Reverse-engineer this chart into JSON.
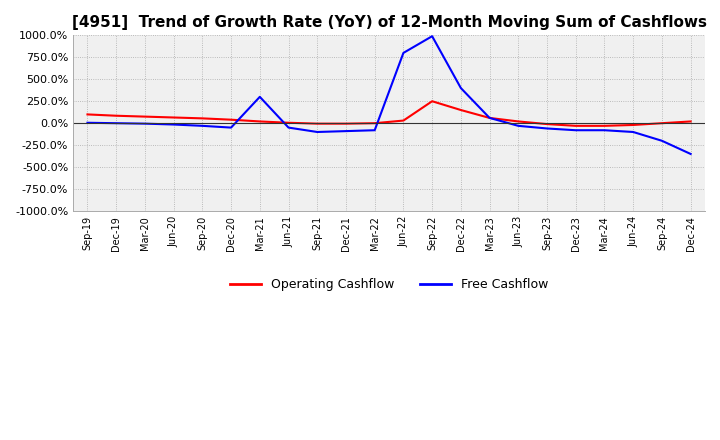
{
  "title": "[4951]  Trend of Growth Rate (YoY) of 12-Month Moving Sum of Cashflows",
  "title_fontsize": 11,
  "ylim": [
    -1000,
    1000
  ],
  "yticks": [
    -1000,
    -750,
    -500,
    -250,
    0,
    250,
    500,
    750,
    1000
  ],
  "ytick_labels": [
    "-1000.0%",
    "-750.0%",
    "-500.0%",
    "-250.0%",
    "0.0%",
    "250.0%",
    "500.0%",
    "750.0%",
    "1000.0%"
  ],
  "background_color": "#ffffff",
  "plot_background_color": "#f0f0f0",
  "grid_color": "#aaaaaa",
  "legend": [
    "Operating Cashflow",
    "Free Cashflow"
  ],
  "legend_colors": [
    "#ff0000",
    "#0000ff"
  ],
  "x_labels": [
    "Sep-19",
    "Dec-19",
    "Mar-20",
    "Jun-20",
    "Sep-20",
    "Dec-20",
    "Mar-21",
    "Jun-21",
    "Sep-21",
    "Dec-21",
    "Mar-22",
    "Jun-22",
    "Sep-22",
    "Dec-22",
    "Mar-23",
    "Jun-23",
    "Sep-23",
    "Dec-23",
    "Mar-24",
    "Jun-24",
    "Sep-24",
    "Dec-24"
  ],
  "operating_cashflow": [
    100,
    85,
    75,
    65,
    55,
    40,
    20,
    5,
    -5,
    -5,
    0,
    30,
    250,
    150,
    60,
    20,
    -10,
    -30,
    -30,
    -20,
    0,
    20
  ],
  "free_cashflow": [
    5,
    0,
    -5,
    -15,
    -30,
    -50,
    300,
    -50,
    -100,
    -90,
    -80,
    800,
    990,
    400,
    60,
    -30,
    -60,
    -80,
    -80,
    -100,
    -200,
    -350
  ]
}
